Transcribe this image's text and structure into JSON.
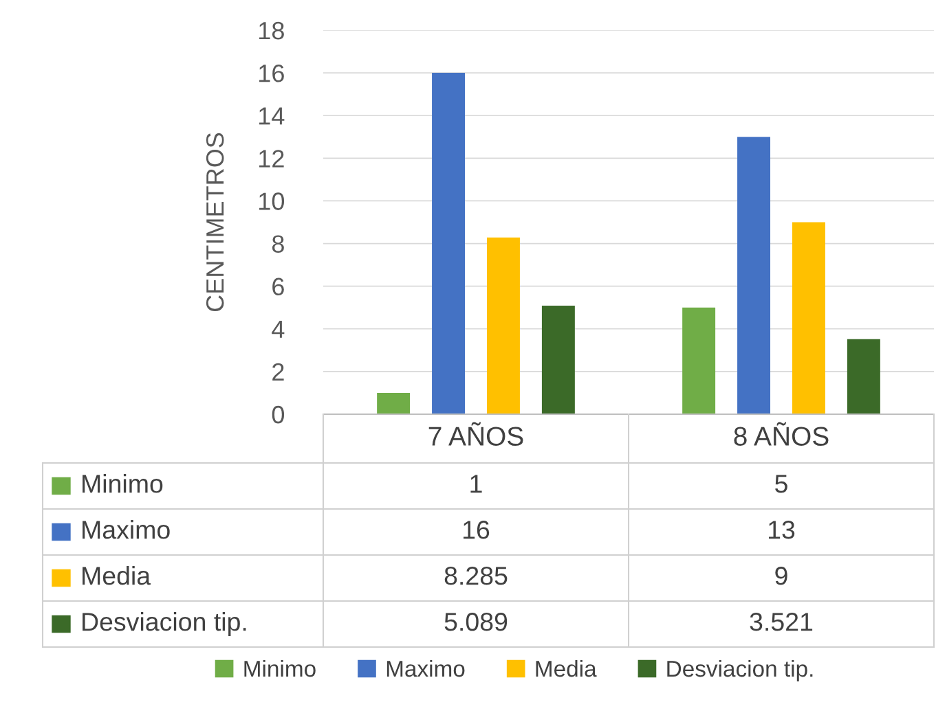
{
  "chart_data": {
    "type": "bar",
    "ylabel": "CENTIMETROS",
    "categories": [
      "7 AÑOS",
      "8 AÑOS"
    ],
    "series": [
      {
        "name": "Minimo",
        "color": "#70ad47",
        "values": [
          1,
          5
        ]
      },
      {
        "name": "Maximo",
        "color": "#4472c4",
        "values": [
          16,
          13
        ]
      },
      {
        "name": "Media",
        "color": "#ffc000",
        "values": [
          8.285,
          9
        ]
      },
      {
        "name": "Desviacion tip.",
        "color": "#3b6a28",
        "values": [
          5.089,
          3.521
        ]
      }
    ],
    "ylim": [
      0,
      18
    ],
    "yticks": [
      0,
      2,
      4,
      6,
      8,
      10,
      12,
      14,
      16,
      18
    ],
    "grid": "y",
    "legend": "bottom",
    "data_labels": true
  }
}
